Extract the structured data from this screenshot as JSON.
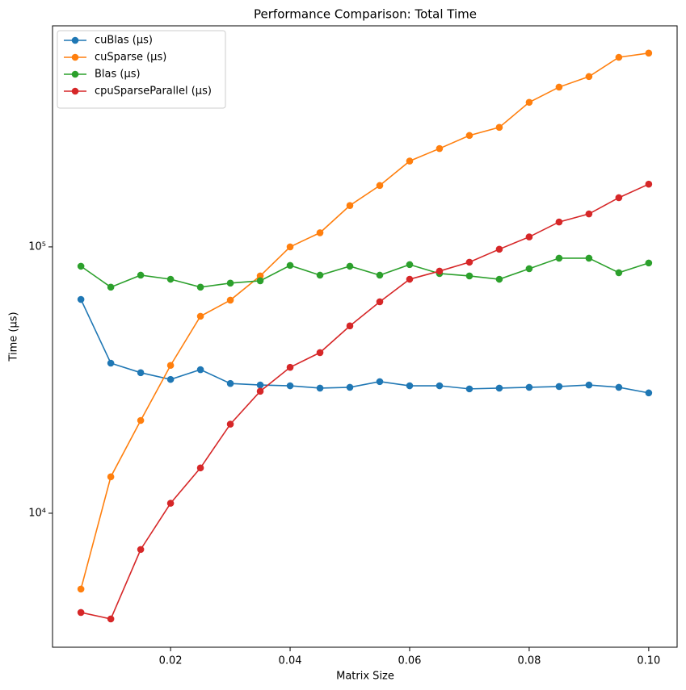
{
  "chart_data": {
    "type": "line",
    "title": "Performance Comparison: Total Time",
    "x_label": "Matrix Size",
    "y_label": "Time (µs)",
    "x": [
      0.005,
      0.01,
      0.015,
      0.02,
      0.025,
      0.03,
      0.035,
      0.04,
      0.045,
      0.05,
      0.055,
      0.06,
      0.065,
      0.07,
      0.075,
      0.08,
      0.085,
      0.09,
      0.095,
      0.1
    ],
    "series": [
      {
        "name": "cuBlas (µs)",
        "color": "#1f77b4",
        "values": [
          63500,
          36600,
          33700,
          31800,
          34600,
          30700,
          30300,
          30100,
          29500,
          29700,
          31200,
          30100,
          30100,
          29300,
          29500,
          29700,
          29900,
          30300,
          29700,
          28300
        ]
      },
      {
        "name": "cuSparse (µs)",
        "color": "#ff7f0e",
        "values": [
          5190,
          13700,
          22300,
          35900,
          54900,
          63100,
          77800,
          100000,
          113000,
          143000,
          170000,
          210000,
          234000,
          262000,
          281000,
          349000,
          398000,
          436000,
          515000,
          534000
        ]
      },
      {
        "name": "Blas (µs)",
        "color": "#2ca02c",
        "values": [
          84600,
          70600,
          78300,
          75600,
          70600,
          73100,
          74600,
          85200,
          78300,
          84600,
          78300,
          85800,
          79400,
          77800,
          75600,
          82800,
          90700,
          90700,
          80000,
          87000
        ]
      },
      {
        "name": "cpuSparseParallel (µs)",
        "color": "#d62728",
        "values": [
          4240,
          4010,
          7310,
          10900,
          14800,
          21600,
          28700,
          35300,
          40100,
          50500,
          62200,
          75600,
          81100,
          87600,
          98000,
          109000,
          124000,
          133000,
          153000,
          172000
        ]
      }
    ],
    "xlim": [
      0.00025,
      0.10475
    ],
    "xticks": [
      0.02,
      0.04,
      0.06,
      0.08,
      {
        "value": 0.1,
        "label": "0.10"
      }
    ],
    "ylim": [
      3140,
      676000
    ],
    "yticks": [
      {
        "value": 10000,
        "label": "10⁴"
      },
      {
        "value": 100000,
        "label": "10⁵"
      }
    ],
    "yscale": "log",
    "grid": false,
    "legend": "upper left"
  }
}
